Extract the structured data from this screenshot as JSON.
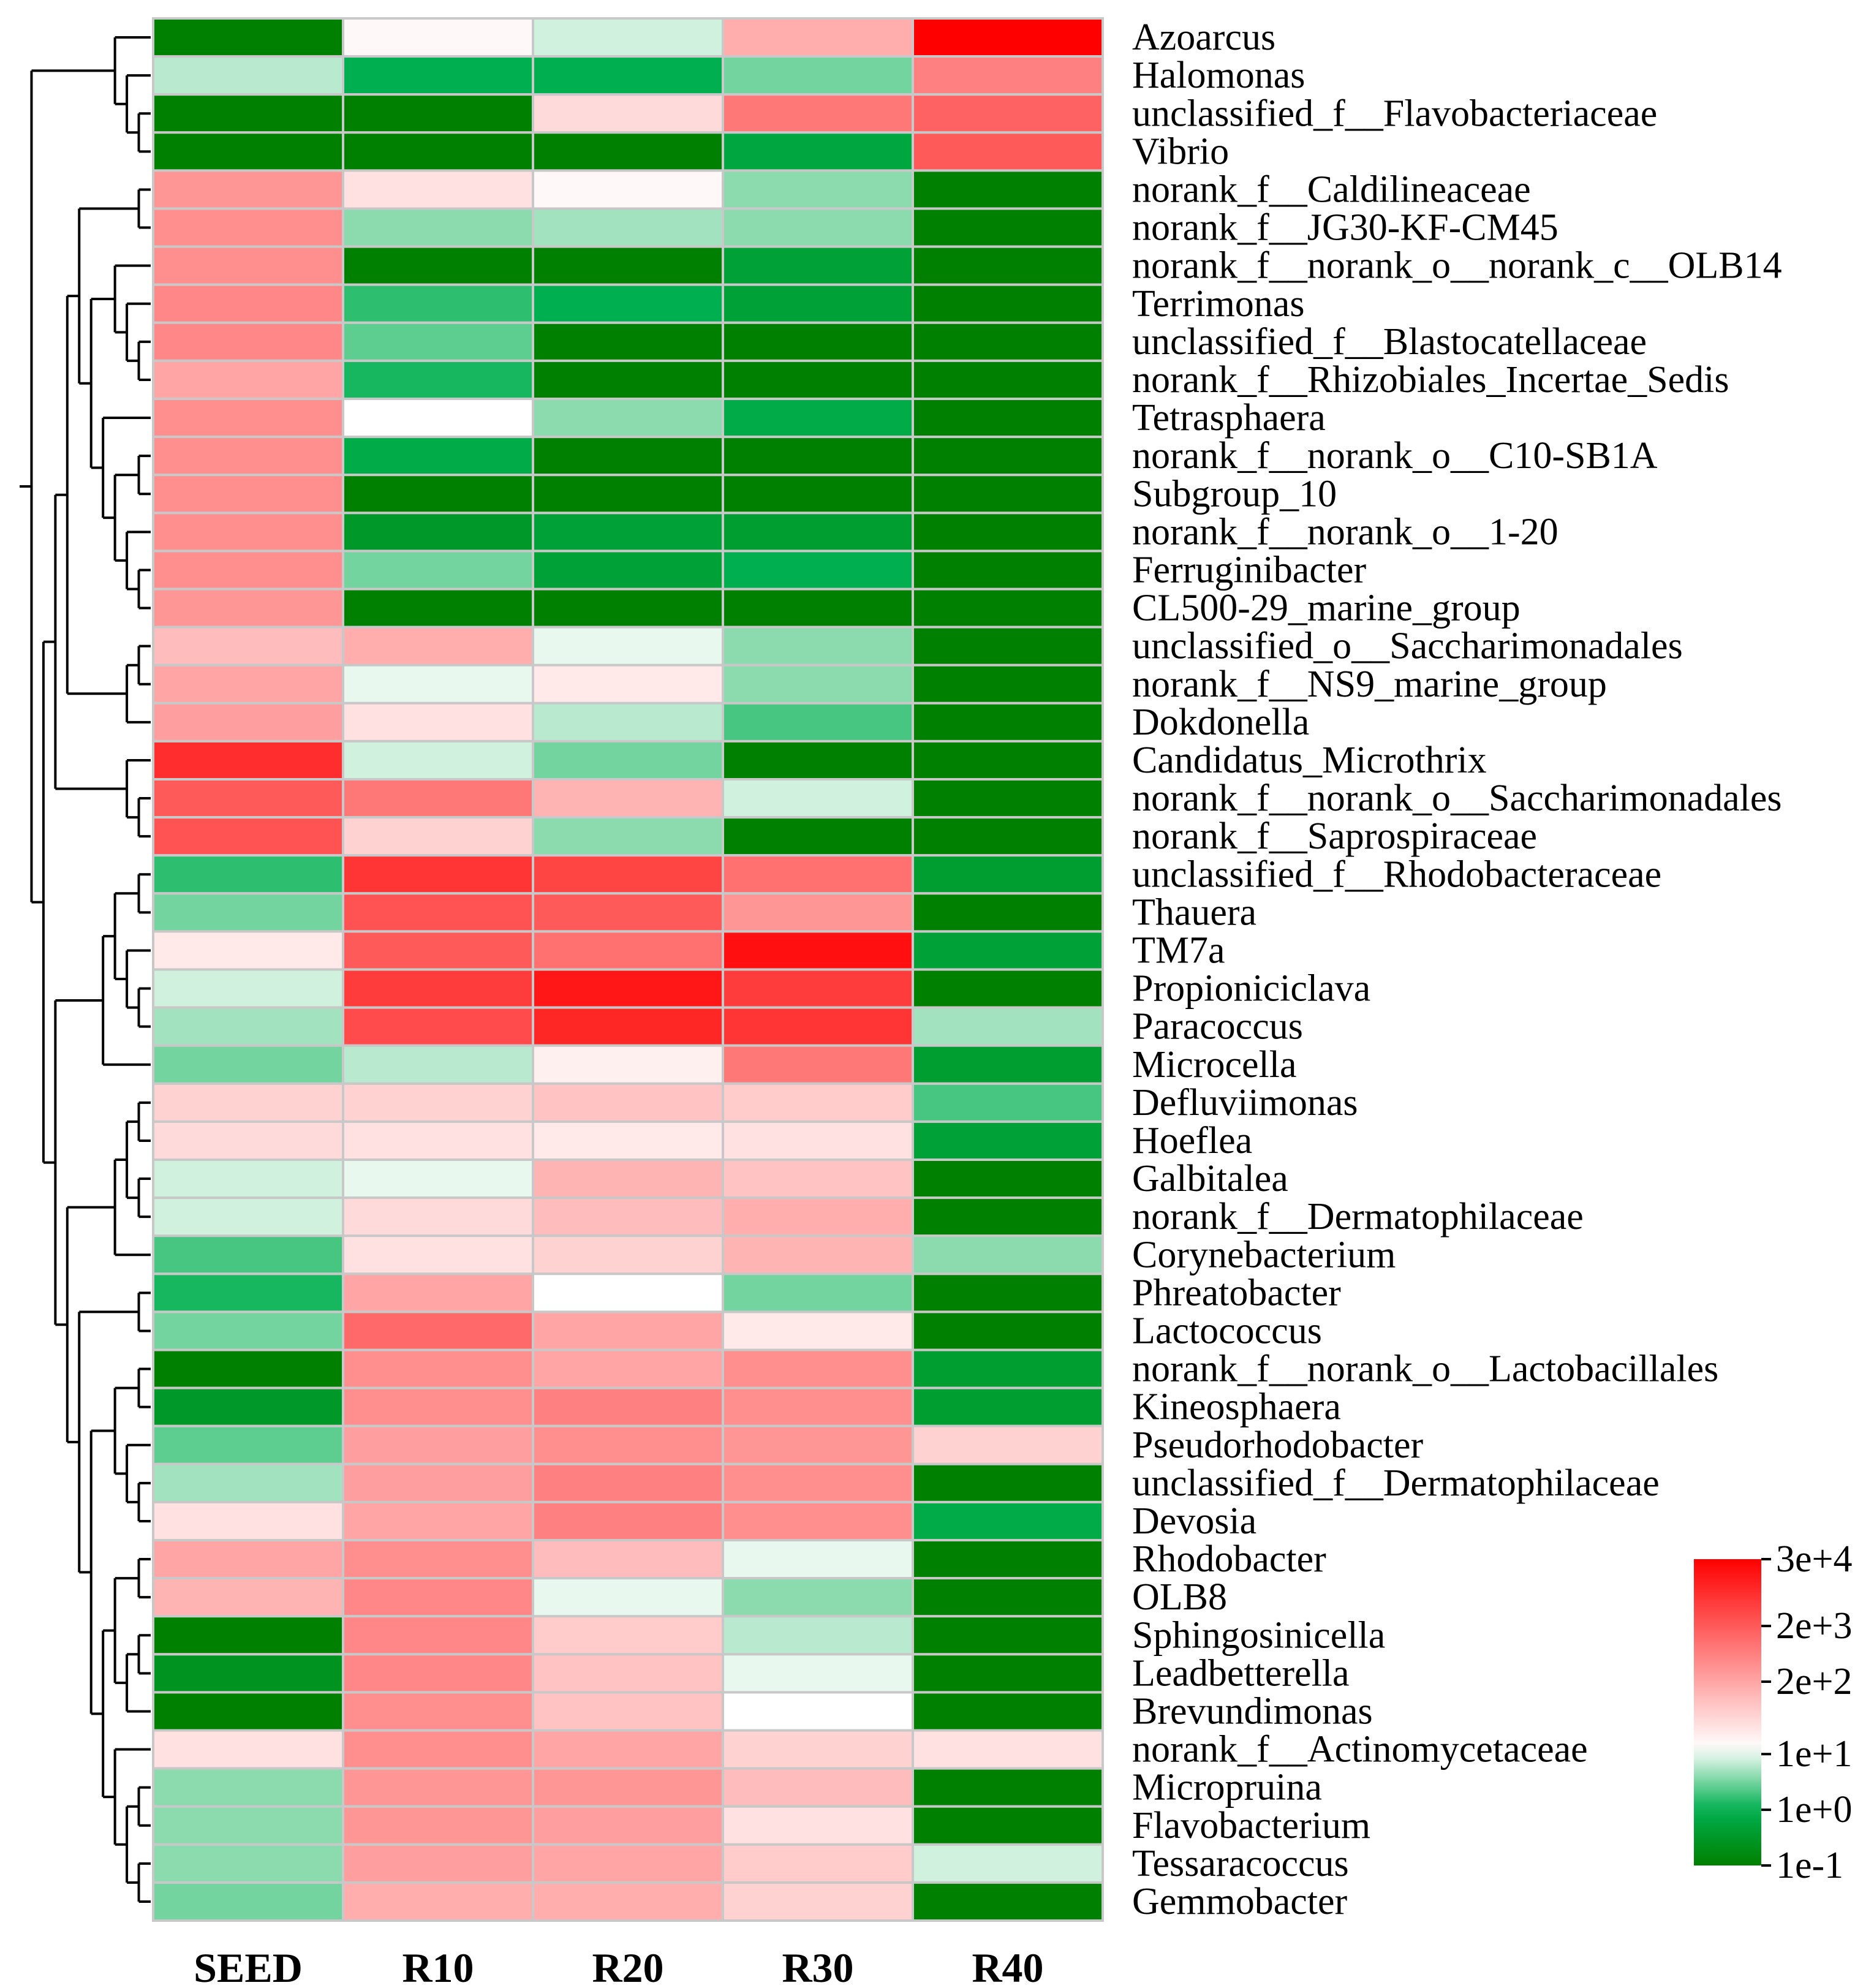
{
  "chart_data": {
    "type": "heatmap",
    "title": "",
    "columns": [
      "SEED",
      "R10",
      "R20",
      "R30",
      "R40"
    ],
    "rows": [
      "Azoarcus",
      "Halomonas",
      "unclassified_f__Flavobacteriaceae",
      "Vibrio",
      "norank_f__Caldilineaceae",
      "norank_f__JG30-KF-CM45",
      "norank_f__norank_o__norank_c__OLB14",
      "Terrimonas",
      "unclassified_f__Blastocatellaceae",
      "norank_f__Rhizobiales_Incertae_Sedis",
      "Tetrasphaera",
      "norank_f__norank_o__C10-SB1A",
      "Subgroup_10",
      "norank_f__norank_o__1-20",
      "Ferruginibacter",
      "CL500-29_marine_group",
      "unclassified_o__Saccharimonadales",
      "norank_f__NS9_marine_group",
      "Dokdonella",
      "Candidatus_Microthrix",
      "norank_f__norank_o__Saccharimonadales",
      "norank_f__Saprospiraceae",
      "unclassified_f__Rhodobacteraceae",
      "Thauera",
      "TM7a",
      "Propioniciclava",
      "Paracoccus",
      "Microcella",
      "Defluviimonas",
      "Hoeflea",
      "Galbitalea",
      "norank_f__Dermatophilaceae",
      "Corynebacterium",
      "Phreatobacter",
      "Lactococcus",
      "norank_f__norank_o__Lactobacillales",
      "Kineosphaera",
      "Pseudorhodobacter",
      "unclassified_f__Dermatophilaceae",
      "Devosia",
      "Rhodobacter",
      "OLB8",
      "Sphingosinicella",
      "Leadbetterella",
      "Brevundimonas",
      "norank_f__Actinomycetaceae",
      "Micropruina",
      "Flavobacterium",
      "Tessaracoccus",
      "Gemmobacter"
    ],
    "values_log10": [
      [
        -1.0,
        1.2,
        0.9,
        2.2,
        4.5
      ],
      [
        0.8,
        0.0,
        0.0,
        0.5,
        2.8
      ],
      [
        -1.0,
        -1.0,
        1.6,
        2.9,
        3.2
      ],
      [
        -1.0,
        -1.0,
        -1.0,
        -0.2,
        3.3
      ],
      [
        2.5,
        1.5,
        1.2,
        0.6,
        -1.0
      ],
      [
        2.6,
        0.6,
        0.7,
        0.6,
        -1.0
      ],
      [
        2.6,
        -1.0,
        -1.0,
        -0.3,
        -1.0
      ],
      [
        2.7,
        0.2,
        0.0,
        -0.3,
        -1.0
      ],
      [
        2.7,
        0.4,
        -1.0,
        -1.0,
        -1.0
      ],
      [
        2.3,
        0.1,
        -1.0,
        -1.0,
        -1.0
      ],
      [
        2.6,
        1.1,
        0.6,
        -0.1,
        -1.0
      ],
      [
        2.6,
        -0.1,
        -1.0,
        -1.0,
        -1.0
      ],
      [
        2.6,
        -1.0,
        -1.0,
        -1.0,
        -1.0
      ],
      [
        2.6,
        -0.5,
        -0.3,
        -0.4,
        -1.0
      ],
      [
        2.6,
        0.5,
        -0.3,
        0.0,
        -1.0
      ],
      [
        2.5,
        -1.0,
        -1.0,
        -1.0,
        -1.0
      ],
      [
        2.0,
        2.2,
        1.0,
        0.6,
        -1.0
      ],
      [
        2.3,
        1.0,
        1.4,
        0.6,
        -1.0
      ],
      [
        2.4,
        1.5,
        0.8,
        0.3,
        -1.0
      ],
      [
        3.9,
        0.9,
        0.5,
        -1.0,
        -1.0
      ],
      [
        3.3,
        2.9,
        2.1,
        0.9,
        -1.0
      ],
      [
        3.4,
        1.7,
        0.6,
        -1.0,
        -1.0
      ],
      [
        0.2,
        3.8,
        3.6,
        3.0,
        -0.4
      ],
      [
        0.5,
        3.4,
        3.3,
        2.5,
        -1.0
      ],
      [
        1.4,
        3.3,
        3.0,
        4.3,
        -0.3
      ],
      [
        0.9,
        3.7,
        4.2,
        3.7,
        -1.0
      ],
      [
        0.7,
        3.5,
        4.0,
        3.8,
        0.7
      ],
      [
        0.5,
        0.8,
        1.3,
        2.9,
        -0.4
      ],
      [
        1.7,
        1.7,
        1.9,
        1.8,
        0.3
      ],
      [
        1.6,
        1.5,
        1.4,
        1.5,
        -0.3
      ],
      [
        0.9,
        1.0,
        2.1,
        1.9,
        -1.0
      ],
      [
        0.9,
        1.6,
        2.0,
        2.2,
        -1.0
      ],
      [
        0.3,
        1.5,
        1.7,
        2.1,
        0.6
      ],
      [
        0.1,
        2.3,
        1.1,
        0.5,
        -1.0
      ],
      [
        0.5,
        3.1,
        2.3,
        1.4,
        -1.0
      ],
      [
        -1.0,
        2.6,
        2.3,
        2.6,
        -0.4
      ],
      [
        -0.5,
        2.6,
        2.8,
        2.6,
        -0.4
      ],
      [
        0.4,
        2.4,
        2.6,
        2.5,
        1.7
      ],
      [
        0.7,
        2.4,
        2.8,
        2.6,
        -1.0
      ],
      [
        1.5,
        2.3,
        2.8,
        2.6,
        -0.1
      ],
      [
        2.3,
        2.6,
        2.0,
        1.0,
        -1.0
      ],
      [
        2.1,
        2.7,
        1.0,
        0.6,
        -1.0
      ],
      [
        -1.0,
        2.7,
        1.8,
        0.8,
        -1.0
      ],
      [
        -0.6,
        2.7,
        1.9,
        1.0,
        -1.0
      ],
      [
        -1.0,
        2.6,
        1.9,
        1.1,
        -1.0
      ],
      [
        1.5,
        2.6,
        2.3,
        1.7,
        1.5
      ],
      [
        0.6,
        2.5,
        2.5,
        2.0,
        -1.0
      ],
      [
        0.6,
        2.5,
        2.4,
        1.5,
        -1.0
      ],
      [
        0.6,
        2.4,
        2.3,
        1.8,
        0.9
      ],
      [
        0.5,
        2.2,
        2.2,
        1.7,
        -1.0
      ]
    ],
    "value_scale": "log10 of relative abundance",
    "color_scale": {
      "low": "#008000",
      "mid_low": "#00b050",
      "mid": "#ffffff",
      "high": "#ff0000",
      "stops_log10": [
        -1,
        0,
        1.1,
        4.5
      ]
    },
    "legend": {
      "position": "bottom-right",
      "tick_values_log10": [
        4.5,
        3.3,
        2.3,
        1.0,
        0.0,
        -1.0
      ],
      "tick_labels": [
        "3e+4",
        "2e+3",
        "2e+2",
        "1e+1",
        "1e+0",
        "1e-1"
      ]
    },
    "row_dendrogram": true,
    "column_dendrogram": false,
    "grid_color": "#c8c8c8"
  }
}
